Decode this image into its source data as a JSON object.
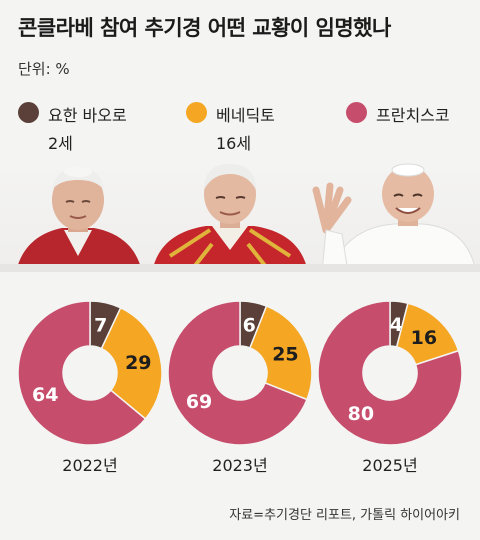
{
  "title": "콘클라베 참여 추기경 어떤 교황이 임명했나",
  "unit": "단위: %",
  "legend": [
    {
      "name": "요한 바오로",
      "sub": "2세",
      "color": "#5a4038"
    },
    {
      "name": "베네딕토",
      "sub": "16세",
      "color": "#f5a623"
    },
    {
      "name": "프란치스코",
      "sub": "",
      "color": "#c64e6c"
    }
  ],
  "chart_data": [
    {
      "type": "pie",
      "donut": true,
      "label": "2022년",
      "categories": [
        "요한 바오로 2세",
        "베네딕토 16세",
        "프란치스코"
      ],
      "values": [
        7,
        29,
        64
      ],
      "colors": [
        "#5a4038",
        "#f5a623",
        "#c64e6c"
      ]
    },
    {
      "type": "pie",
      "donut": true,
      "label": "2023년",
      "categories": [
        "요한 바오로 2세",
        "베네딕토 16세",
        "프란치스코"
      ],
      "values": [
        6,
        25,
        69
      ],
      "colors": [
        "#5a4038",
        "#f5a623",
        "#c64e6c"
      ]
    },
    {
      "type": "pie",
      "donut": true,
      "label": "2025년",
      "categories": [
        "요한 바오로 2세",
        "베네딕토 16세",
        "프란치스코"
      ],
      "values": [
        4,
        16,
        80
      ],
      "colors": [
        "#5a4038",
        "#f5a623",
        "#c64e6c"
      ]
    }
  ],
  "source": "자료=추기경단 리포트, 가톨릭 하이어아키"
}
